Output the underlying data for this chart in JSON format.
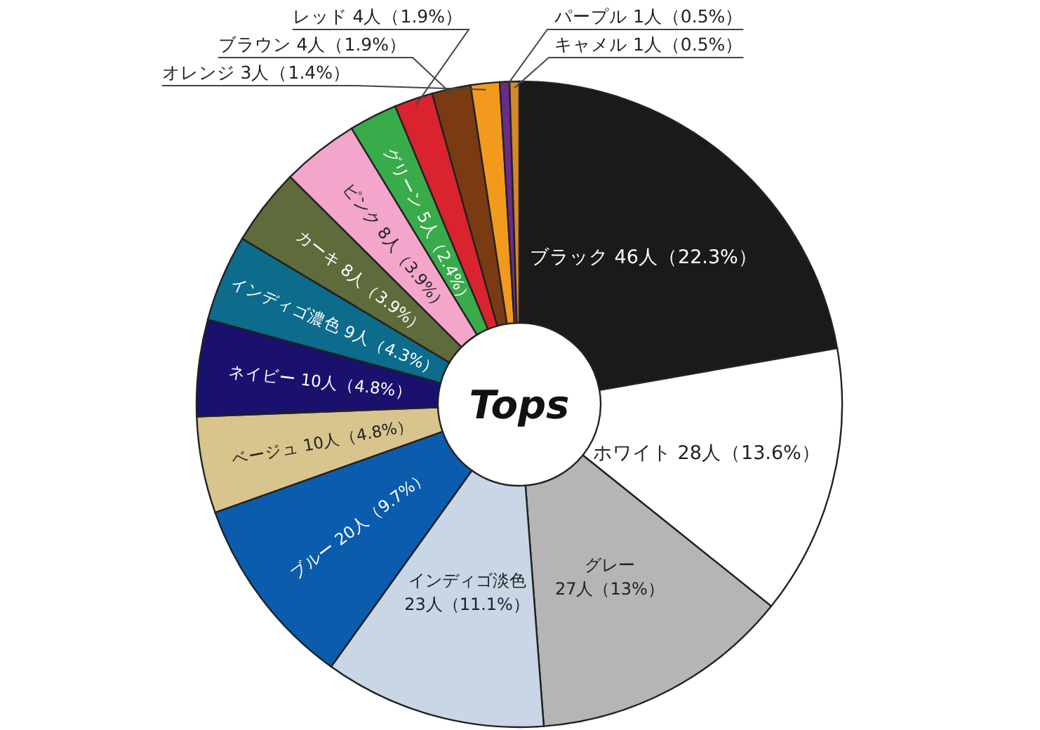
{
  "chart_data": {
    "type": "donut",
    "title": "Tops",
    "categories": [
      "ブラック",
      "ホワイト",
      "グレー",
      "インディゴ淡色",
      "ブルー",
      "ベージュ",
      "ネイビー",
      "インディゴ濃色",
      "カーキ",
      "ピンク",
      "グリーン",
      "レッド",
      "ブラウン",
      "オレンジ",
      "パープル",
      "キャメル"
    ],
    "values": [
      46,
      28,
      27,
      23,
      20,
      10,
      10,
      9,
      8,
      8,
      5,
      4,
      4,
      3,
      1,
      1
    ],
    "value_labels": [
      "46人（22.3%）",
      "28人（13.6%）",
      "27人（13%）",
      "23人（11.1%）",
      "20人（9.7%）",
      "10人（4.8%）",
      "10人（4.8%）",
      "9人（4.3%）",
      "8人（3.9%）",
      "8人（3.9%）",
      "5人（2.4%）",
      "4人（1.9%）",
      "4人（1.9%）",
      "3人（1.4%）",
      "1人（0.5%）",
      "1人（0.5%）"
    ],
    "colors": [
      "#1a1a1a",
      "#ffffff",
      "#b5b5b5",
      "#c8d6e6",
      "#0b5cad",
      "#d8c48c",
      "#1a116e",
      "#0d6b8c",
      "#5e6b3a",
      "#f3a5cb",
      "#3aab4b",
      "#d9232e",
      "#7a3b12",
      "#f39a1e",
      "#6b2b8b",
      "#d4882a"
    ],
    "legend": false
  }
}
